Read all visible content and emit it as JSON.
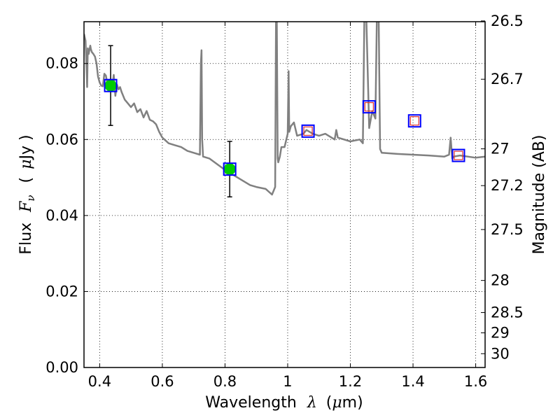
{
  "chart_data": {
    "type": "line",
    "title": "",
    "xlabel_text": "Wavelength",
    "xlabel_symbol": "λ",
    "xlabel_unit_open": "(",
    "xlabel_unit_mu": "μ",
    "xlabel_unit_rest": "m)",
    "ylabel_text": "Flux",
    "ylabel_symbol": "F",
    "ylabel_subscript": "ν",
    "ylabel_unit_open": "(",
    "ylabel_unit_mu": "μ",
    "ylabel_unit_rest": "Jy )",
    "y2label": "Magnitude (AB)",
    "xlim": [
      0.35,
      1.63
    ],
    "ylim": [
      0.0,
      0.091
    ],
    "grid": true,
    "x_ticks": [
      {
        "value": 0.4,
        "label": "0.4"
      },
      {
        "value": 0.6,
        "label": "0.6"
      },
      {
        "value": 0.8,
        "label": "0.8"
      },
      {
        "value": 1.0,
        "label": "1"
      },
      {
        "value": 1.2,
        "label": "1.2"
      },
      {
        "value": 1.4,
        "label": "1.4"
      },
      {
        "value": 1.6,
        "label": "1.6"
      }
    ],
    "y_ticks": [
      {
        "value": 0.0,
        "label": "0.00"
      },
      {
        "value": 0.02,
        "label": "0.02"
      },
      {
        "value": 0.04,
        "label": "0.04"
      },
      {
        "value": 0.06,
        "label": "0.06"
      },
      {
        "value": 0.08,
        "label": "0.08"
      }
    ],
    "y2_ticks": [
      {
        "mag": 26.5,
        "label": "26.5"
      },
      {
        "mag": 26.7,
        "label": "26.7"
      },
      {
        "mag": 27.0,
        "label": "27"
      },
      {
        "mag": 27.2,
        "label": "27.2"
      },
      {
        "mag": 27.5,
        "label": "27.5"
      },
      {
        "mag": 28.0,
        "label": "28"
      },
      {
        "mag": 28.5,
        "label": "28.5"
      },
      {
        "mag": 29.0,
        "label": "29"
      },
      {
        "mag": 30.0,
        "label": "30"
      }
    ],
    "series": [
      {
        "name": "model spectrum",
        "kind": "line",
        "color": "#808080",
        "x": [
          0.35,
          0.355,
          0.36,
          0.362,
          0.365,
          0.37,
          0.372,
          0.375,
          0.38,
          0.385,
          0.39,
          0.395,
          0.4,
          0.405,
          0.41,
          0.415,
          0.42,
          0.425,
          0.43,
          0.435,
          0.44,
          0.445,
          0.45,
          0.455,
          0.46,
          0.465,
          0.47,
          0.48,
          0.49,
          0.5,
          0.51,
          0.52,
          0.53,
          0.54,
          0.55,
          0.56,
          0.57,
          0.58,
          0.59,
          0.6,
          0.62,
          0.64,
          0.66,
          0.68,
          0.7,
          0.72,
          0.723,
          0.725,
          0.727,
          0.73,
          0.75,
          0.8,
          0.85,
          0.88,
          0.9,
          0.93,
          0.95,
          0.96,
          0.963,
          0.965,
          0.968,
          0.97,
          0.975,
          0.98,
          0.99,
          1.0,
          1.003,
          1.005,
          1.01,
          1.02,
          1.03,
          1.05,
          1.06,
          1.08,
          1.1,
          1.12,
          1.15,
          1.155,
          1.16,
          1.2,
          1.23,
          1.24,
          1.245,
          1.25,
          1.26,
          1.27,
          1.28,
          1.285,
          1.29,
          1.295,
          1.3,
          1.35,
          1.4,
          1.45,
          1.5,
          1.515,
          1.52,
          1.525,
          1.53,
          1.55,
          1.6,
          1.63
        ],
        "y": [
          0.0878,
          0.086,
          0.0738,
          0.084,
          0.0825,
          0.0847,
          0.0838,
          0.083,
          0.0825,
          0.0818,
          0.08,
          0.0765,
          0.075,
          0.0742,
          0.074,
          0.0773,
          0.0768,
          0.0745,
          0.074,
          0.0758,
          0.0735,
          0.077,
          0.0715,
          0.0745,
          0.0732,
          0.0738,
          0.0725,
          0.0705,
          0.0695,
          0.0685,
          0.0695,
          0.0672,
          0.068,
          0.0658,
          0.0675,
          0.0652,
          0.0648,
          0.064,
          0.062,
          0.0605,
          0.059,
          0.0585,
          0.058,
          0.057,
          0.0565,
          0.056,
          0.08,
          0.0835,
          0.06,
          0.0555,
          0.055,
          0.052,
          0.0495,
          0.048,
          0.0475,
          0.047,
          0.0455,
          0.0475,
          0.095,
          0.095,
          0.055,
          0.054,
          0.0555,
          0.058,
          0.058,
          0.0615,
          0.078,
          0.062,
          0.0635,
          0.0645,
          0.061,
          0.0615,
          0.0625,
          0.0615,
          0.061,
          0.0615,
          0.06,
          0.0625,
          0.0605,
          0.0595,
          0.06,
          0.059,
          0.095,
          0.095,
          0.063,
          0.0675,
          0.0655,
          0.095,
          0.095,
          0.0575,
          0.0565,
          0.0562,
          0.056,
          0.0558,
          0.0555,
          0.056,
          0.0605,
          0.055,
          0.0555,
          0.0558,
          0.0552,
          0.0555
        ]
      },
      {
        "name": "observed photometry",
        "kind": "points",
        "color": "#00cc00",
        "x": [
          0.435,
          0.815
        ],
        "y": [
          0.0742,
          0.0522
        ],
        "yerr": [
          0.0105,
          0.0073
        ]
      },
      {
        "name": "model photometry (blue squares)",
        "kind": "squares",
        "color": "#0000ff",
        "x": [
          0.435,
          0.815,
          1.065,
          1.26,
          1.405,
          1.545
        ],
        "y": [
          0.0742,
          0.0522,
          0.0622,
          0.0686,
          0.0649,
          0.0558
        ]
      },
      {
        "name": "model photometry (red squares)",
        "kind": "squares",
        "color": "#e03030",
        "x": [
          1.065,
          1.26,
          1.405,
          1.545
        ],
        "y": [
          0.0622,
          0.0686,
          0.0649,
          0.0558
        ]
      }
    ]
  }
}
